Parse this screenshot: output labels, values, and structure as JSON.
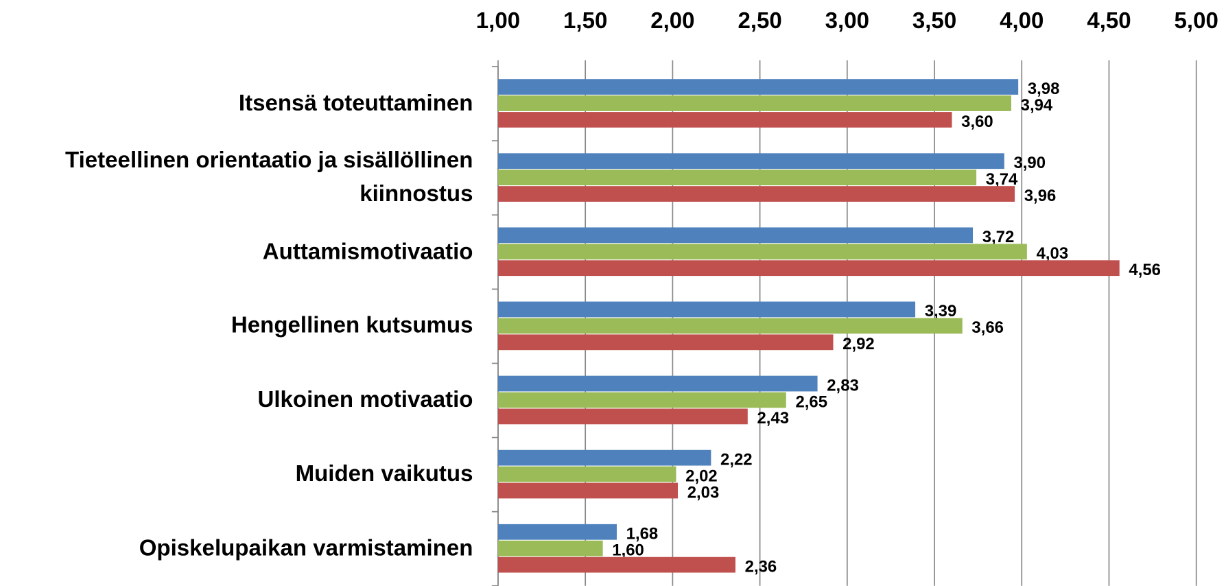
{
  "chart_data": {
    "type": "bar",
    "orientation": "horizontal",
    "categories": [
      "Itsensä toteuttaminen",
      "Tieteellinen orientaatio ja sisällöllinen kiinnostus",
      "Auttamismotivaatio",
      "Hengellinen kutsumus",
      "Ulkoinen motivaatio",
      "Muiden vaikutus",
      "Opiskelupaikan varmistaminen"
    ],
    "series": [
      {
        "color": "#4f81bd",
        "values": [
          3.98,
          3.9,
          3.72,
          3.39,
          2.83,
          2.22,
          1.68
        ],
        "value_labels": [
          "3,98",
          "3,90",
          "3,72",
          "3,39",
          "2,83",
          "2,22",
          "1,68"
        ]
      },
      {
        "color": "#9bbb59",
        "values": [
          3.94,
          3.74,
          4.03,
          3.66,
          2.65,
          2.02,
          1.6
        ],
        "value_labels": [
          "3,94",
          "3,74",
          "4,03",
          "3,66",
          "2,65",
          "2,02",
          "1,60"
        ]
      },
      {
        "color": "#c0504d",
        "values": [
          3.6,
          3.96,
          4.56,
          2.92,
          2.43,
          2.03,
          2.36
        ],
        "value_labels": [
          "3,60",
          "3,96",
          "4,56",
          "2,92",
          "2,43",
          "2,03",
          "2,36"
        ]
      }
    ],
    "xlim": [
      1,
      5
    ],
    "xticks": [
      {
        "value": 1,
        "label": "1,00"
      },
      {
        "value": 1.5,
        "label": "1,50"
      },
      {
        "value": 2,
        "label": "2,00"
      },
      {
        "value": 2.5,
        "label": "2,50"
      },
      {
        "value": 3,
        "label": "3,00"
      },
      {
        "value": 3.5,
        "label": "3,50"
      },
      {
        "value": 4,
        "label": "4,00"
      },
      {
        "value": 4.5,
        "label": "4,50"
      },
      {
        "value": 5,
        "label": "5,00"
      }
    ],
    "grid": true
  }
}
